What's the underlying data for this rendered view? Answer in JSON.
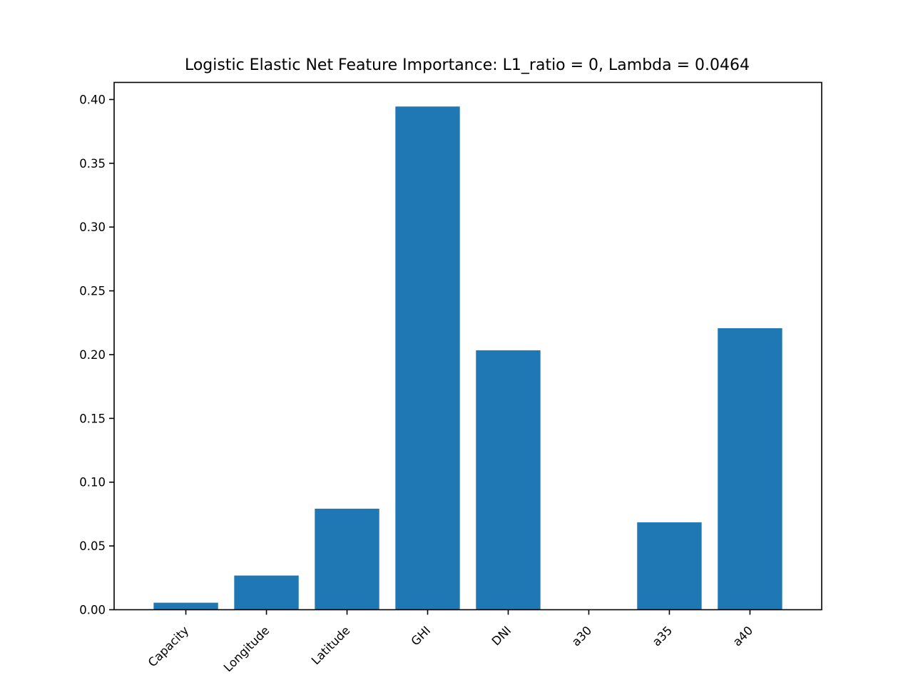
{
  "chart_data": {
    "type": "bar",
    "title": "Logistic Elastic Net Feature Importance: L1_ratio = 0, Lambda = 0.0464",
    "xlabel": "",
    "ylabel": "",
    "categories": [
      "Capacity",
      "Longitude",
      "Latitude",
      "GHI",
      "DNI",
      "a30",
      "a35",
      "a40"
    ],
    "values": [
      0.0055,
      0.0268,
      0.0792,
      0.3945,
      0.2034,
      0.0,
      0.0685,
      0.2207
    ],
    "ylim": [
      0,
      0.4134
    ],
    "yticks": [
      "0.00",
      "0.05",
      "0.10",
      "0.15",
      "0.20",
      "0.25",
      "0.30",
      "0.35",
      "0.40"
    ],
    "bar_color": "#1f77b4",
    "grid": false,
    "legend": "none"
  }
}
